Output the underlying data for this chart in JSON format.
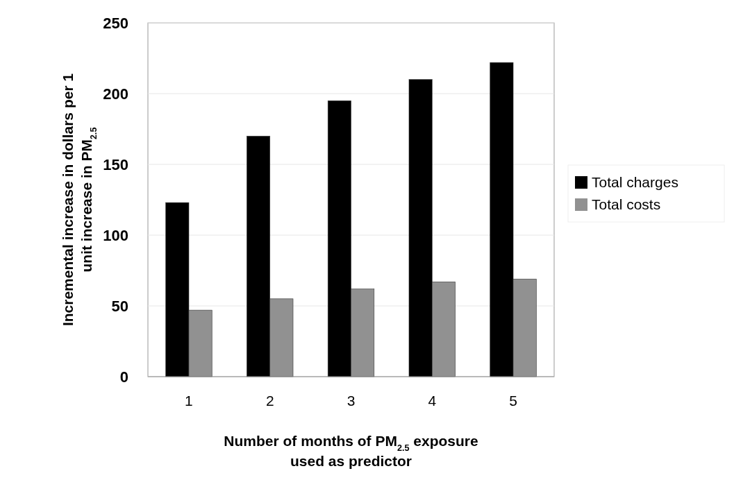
{
  "chart_data": {
    "type": "bar",
    "xlabel": "Number of months of PM$_{2.5}$ exposure\nused as predictor",
    "ylabel": "Incremental increase in dollars per 1\nunit increase in PM$_{2.5}$",
    "categories": [
      "1",
      "2",
      "3",
      "4",
      "5"
    ],
    "series": [
      {
        "name": "Total charges",
        "color": "#000000",
        "values": [
          123,
          170,
          195,
          210,
          222
        ]
      },
      {
        "name": "Total costs",
        "color": "#919191",
        "values": [
          47,
          55,
          62,
          67,
          69
        ]
      }
    ],
    "ylim": [
      0,
      250
    ],
    "yticks": [
      0,
      50,
      100,
      150,
      200,
      250
    ],
    "grid": "y",
    "legend": "right"
  }
}
